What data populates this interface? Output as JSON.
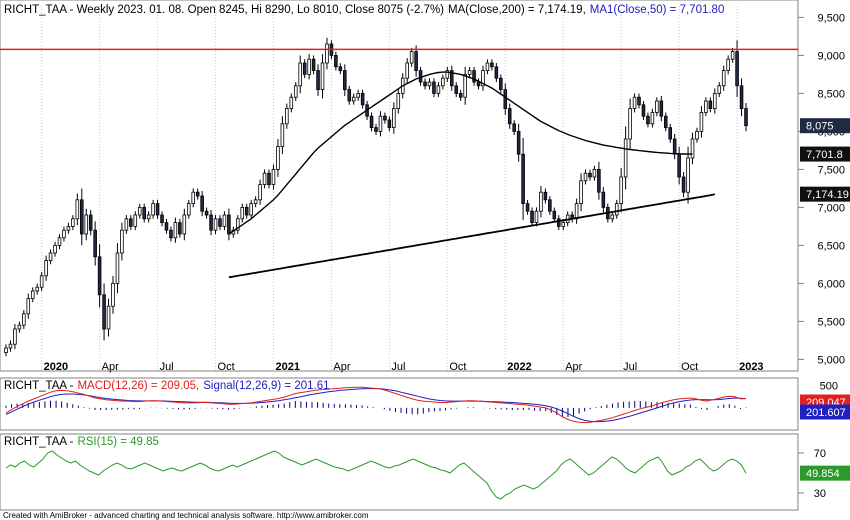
{
  "footer": "Created with AmiBroker - advanced charting and technical analysis software. http://www.amibroker.com",
  "colors": {
    "up": "#ffffff",
    "down": "#202a44",
    "candle_outline": "#000000",
    "resistance": "#e02020",
    "ma": "#000000",
    "macd": "#e02020",
    "signal": "#2020c0",
    "hist": "#000080",
    "rsi": "#2a9a2a",
    "tag_price": "#202a44",
    "tag_ma": "#101010"
  },
  "chart_data": [
    {
      "type": "candlestick",
      "header": {
        "prefix": "RICHT_TAA - Weekly 2023. 01. 08. Open 8245, Hi 8290, Lo 8010, Close 8075 (-2.7%)",
        "ma200": "MA(Close,200) = 7,174.19,",
        "ma50": "MA1(Close,50) = 7,701.80"
      },
      "ylim": [
        4900,
        9650
      ],
      "y_ticks": [
        5000,
        5500,
        6000,
        6500,
        7000,
        7500,
        8000,
        8500,
        9000,
        9500
      ],
      "y_tick_labels": [
        "5,000",
        "5,500",
        "6,000",
        "6,500",
        "7,000",
        "7,500",
        "8,000",
        "8,500",
        "9,000",
        "9,500"
      ],
      "x_labels": [
        {
          "t": 8,
          "label": "2020",
          "year": true
        },
        {
          "t": 21,
          "label": "Apr",
          "year": false
        },
        {
          "t": 34,
          "label": "Jul",
          "year": false
        },
        {
          "t": 47,
          "label": "Oct",
          "year": false
        },
        {
          "t": 60,
          "label": "2021",
          "year": true
        },
        {
          "t": 73,
          "label": "Apr",
          "year": false
        },
        {
          "t": 86,
          "label": "Jul",
          "year": false
        },
        {
          "t": 99,
          "label": "Oct",
          "year": false
        },
        {
          "t": 112,
          "label": "2022",
          "year": true
        },
        {
          "t": 125,
          "label": "Apr",
          "year": false
        },
        {
          "t": 138,
          "label": "Jul",
          "year": false
        },
        {
          "t": 151,
          "label": "Oct",
          "year": false
        },
        {
          "t": 164,
          "label": "2023",
          "year": true
        }
      ],
      "resistance": 9080,
      "tags": [
        {
          "label": "8,075",
          "value": 8075,
          "kind": "price"
        },
        {
          "label": "7,701.8",
          "value": 7701.8,
          "kind": "ma"
        },
        {
          "label": "7,174.19",
          "value": 7174.19,
          "kind": "ma"
        }
      ],
      "close": [
        5150,
        5200,
        5400,
        5450,
        5600,
        5800,
        5900,
        5950,
        6100,
        6300,
        6400,
        6500,
        6600,
        6700,
        6750,
        6850,
        7100,
        6650,
        6900,
        6700,
        6350,
        5850,
        5400,
        5700,
        6000,
        6400,
        6700,
        6850,
        6750,
        6900,
        7000,
        6850,
        6900,
        7050,
        6900,
        6800,
        6700,
        6600,
        6800,
        6650,
        6900,
        7050,
        7200,
        7150,
        6950,
        6900,
        6700,
        6850,
        6750,
        6900,
        6650,
        6700,
        6850,
        7000,
        6900,
        7050,
        7100,
        7300,
        7450,
        7300,
        7500,
        7800,
        8100,
        8300,
        8450,
        8600,
        8900,
        8750,
        8950,
        8800,
        8550,
        8900,
        9150,
        9000,
        8850,
        8800,
        8550,
        8400,
        8450,
        8500,
        8350,
        8200,
        8050,
        8000,
        8200,
        8150,
        8050,
        8300,
        8500,
        8700,
        8900,
        9050,
        8800,
        8650,
        8600,
        8650,
        8500,
        8600,
        8700,
        8800,
        8600,
        8500,
        8450,
        8750,
        8800,
        8650,
        8600,
        8800,
        8900,
        8850,
        8700,
        8550,
        8300,
        8100,
        8000,
        7700,
        7050,
        6950,
        6800,
        6950,
        7200,
        7100,
        6950,
        6850,
        6750,
        6800,
        6900,
        6850,
        7050,
        7350,
        7450,
        7400,
        7500,
        7200,
        7000,
        6850,
        6900,
        7050,
        7400,
        7900,
        8300,
        8450,
        8350,
        8200,
        8100,
        8250,
        8400,
        8200,
        8050,
        7900,
        7700,
        7400,
        7200,
        7650,
        7900,
        8000,
        8250,
        8400,
        8300,
        8500,
        8600,
        8800,
        8950,
        9050,
        8600,
        8300,
        8075
      ],
      "ma50": [
        null,
        null,
        null,
        null,
        null,
        null,
        null,
        null,
        null,
        null,
        null,
        null,
        null,
        null,
        null,
        null,
        null,
        null,
        null,
        null,
        null,
        null,
        null,
        null,
        null,
        null,
        null,
        null,
        null,
        null,
        null,
        null,
        null,
        null,
        null,
        null,
        null,
        null,
        null,
        null,
        null,
        null,
        null,
        null,
        null,
        null,
        null,
        null,
        null,
        null,
        6650,
        6690,
        6730,
        6770,
        6810,
        6850,
        6900,
        6950,
        7000,
        7050,
        7100,
        7160,
        7230,
        7300,
        7370,
        7440,
        7510,
        7580,
        7650,
        7720,
        7780,
        7830,
        7880,
        7930,
        7980,
        8030,
        8080,
        8120,
        8160,
        8200,
        8240,
        8280,
        8320,
        8360,
        8400,
        8440,
        8480,
        8520,
        8560,
        8600,
        8630,
        8660,
        8690,
        8710,
        8730,
        8750,
        8765,
        8775,
        8780,
        8780,
        8770,
        8760,
        8750,
        8730,
        8710,
        8690,
        8660,
        8630,
        8600,
        8570,
        8530,
        8490,
        8450,
        8410,
        8370,
        8330,
        8290,
        8250,
        8210,
        8170,
        8130,
        8100,
        8070,
        8040,
        8010,
        7985,
        7960,
        7940,
        7920,
        7900,
        7880,
        7865,
        7850,
        7835,
        7820,
        7810,
        7800,
        7790,
        7780,
        7770,
        7762,
        7755,
        7748,
        7741,
        7735,
        7729,
        7724,
        7719,
        7715,
        7711,
        7708,
        7705,
        7703,
        7702,
        7701.8
      ],
      "ma200": [
        null,
        null,
        null,
        null,
        null,
        null,
        null,
        null,
        null,
        null,
        null,
        null,
        null,
        null,
        null,
        null,
        null,
        null,
        null,
        null,
        null,
        null,
        null,
        null,
        null,
        null,
        null,
        null,
        null,
        null,
        null,
        null,
        null,
        null,
        null,
        null,
        null,
        null,
        null,
        null,
        null,
        null,
        null,
        null,
        null,
        null,
        null,
        null,
        null,
        null,
        6080,
        6090,
        6100,
        6110,
        6120,
        6130,
        6140,
        6150,
        6160,
        6170,
        6180,
        6190,
        6200,
        6210,
        6220,
        6230,
        6240,
        6250,
        6260,
        6270,
        6280,
        6290,
        6300,
        6310,
        6320,
        6330,
        6340,
        6350,
        6360,
        6370,
        6380,
        6390,
        6400,
        6410,
        6420,
        6430,
        6440,
        6450,
        6460,
        6470,
        6480,
        6490,
        6500,
        6510,
        6520,
        6530,
        6540,
        6550,
        6560,
        6570,
        6580,
        6590,
        6600,
        6610,
        6620,
        6630,
        6640,
        6650,
        6660,
        6670,
        6680,
        6690,
        6700,
        6710,
        6720,
        6730,
        6740,
        6750,
        6760,
        6770,
        6780,
        6790,
        6800,
        6810,
        6820,
        6830,
        6840,
        6850,
        6860,
        6870,
        6880,
        6890,
        6900,
        6910,
        6920,
        6930,
        6940,
        6950,
        6960,
        6970,
        6980,
        6990,
        7000,
        7010,
        7020,
        7030,
        7040,
        7050,
        7060,
        7070,
        7080,
        7090,
        7100,
        7110,
        7120,
        7130,
        7140,
        7150,
        7160,
        7174.19
      ]
    },
    {
      "type": "line",
      "header": {
        "prefix": "RICHT_TAA -",
        "macd": "MACD(12,26) = 209.05,",
        "signal": "Signal(12,26,9) = 201.61"
      },
      "ylim": [
        -450,
        600
      ],
      "y_ticks": [
        500
      ],
      "y_tick_labels": [
        "500"
      ],
      "tags": [
        {
          "label": "209.047",
          "value": 209.047,
          "kind": "macd"
        },
        {
          "label": "201.607",
          "value": 201.607,
          "kind": "signal"
        }
      ],
      "macd": [
        -120,
        -40,
        30,
        90,
        150,
        200,
        250,
        300,
        350,
        380,
        390,
        380,
        360,
        330,
        300,
        260,
        220,
        200,
        180,
        170,
        160,
        150,
        150,
        140,
        140,
        150,
        160,
        160,
        150,
        140,
        130,
        120,
        110,
        110,
        110,
        120,
        120,
        110,
        100,
        90,
        80,
        80,
        90,
        100,
        110,
        130,
        150,
        170,
        190,
        210,
        240,
        280,
        320,
        340,
        360,
        380,
        400,
        410,
        420,
        430,
        440,
        450,
        455,
        460,
        460,
        450,
        440,
        430,
        400,
        360,
        320,
        280,
        240,
        200,
        170,
        150,
        140,
        130,
        120,
        120,
        130,
        140,
        150,
        160,
        160,
        150,
        140,
        130,
        120,
        110,
        100,
        90,
        80,
        70,
        60,
        40,
        20,
        0,
        -50,
        -120,
        -200,
        -260,
        -300,
        -320,
        -330,
        -320,
        -300,
        -280,
        -250,
        -220,
        -180,
        -140,
        -100,
        -60,
        -20,
        10,
        40,
        80,
        120,
        150,
        180,
        200,
        210,
        220,
        200,
        170,
        150,
        180,
        210,
        240,
        260,
        250,
        200,
        209.05
      ],
      "signal": [
        -150,
        -90,
        -30,
        30,
        80,
        130,
        170,
        210,
        250,
        280,
        300,
        310,
        310,
        300,
        290,
        270,
        250,
        230,
        210,
        195,
        185,
        175,
        165,
        160,
        155,
        155,
        155,
        155,
        155,
        150,
        145,
        140,
        135,
        130,
        125,
        125,
        125,
        120,
        115,
        110,
        105,
        100,
        100,
        100,
        105,
        110,
        120,
        130,
        145,
        160,
        180,
        200,
        225,
        250,
        275,
        300,
        320,
        340,
        360,
        375,
        390,
        400,
        410,
        420,
        425,
        430,
        430,
        430,
        420,
        400,
        380,
        350,
        320,
        290,
        260,
        230,
        200,
        180,
        165,
        155,
        150,
        150,
        150,
        150,
        150,
        150,
        145,
        140,
        135,
        130,
        125,
        120,
        110,
        100,
        90,
        80,
        65,
        45,
        20,
        -20,
        -70,
        -130,
        -190,
        -240,
        -280,
        -300,
        -310,
        -305,
        -295,
        -280,
        -255,
        -225,
        -190,
        -155,
        -115,
        -80,
        -40,
        0,
        40,
        80,
        110,
        140,
        160,
        175,
        185,
        185,
        180,
        180,
        185,
        195,
        210,
        220,
        215,
        201.61
      ],
      "hist_scale": 1.6
    },
    {
      "type": "line",
      "header": {
        "prefix": "RICHT_TAA -",
        "rsi": "RSI(15) = 49.85"
      },
      "ylim": [
        15,
        85
      ],
      "y_ticks": [
        70,
        30
      ],
      "y_tick_labels": [
        "70",
        "30"
      ],
      "tags": [
        {
          "label": "49.854",
          "value": 49.854,
          "kind": "rsi"
        }
      ],
      "rsi": [
        55,
        58,
        56,
        60,
        62,
        58,
        56,
        60,
        64,
        70,
        72,
        68,
        65,
        62,
        60,
        62,
        58,
        55,
        52,
        50,
        48,
        52,
        55,
        58,
        60,
        58,
        55,
        54,
        56,
        58,
        60,
        58,
        56,
        54,
        52,
        54,
        55,
        53,
        52,
        54,
        56,
        58,
        60,
        58,
        55,
        53,
        52,
        54,
        56,
        58,
        56,
        58,
        60,
        62,
        64,
        66,
        68,
        70,
        72,
        70,
        66,
        64,
        62,
        60,
        58,
        60,
        62,
        64,
        62,
        60,
        58,
        56,
        55,
        54,
        52,
        54,
        56,
        58,
        60,
        62,
        60,
        58,
        56,
        55,
        57,
        58,
        60,
        62,
        64,
        62,
        60,
        58,
        56,
        55,
        53,
        52,
        50,
        54,
        58,
        60,
        56,
        52,
        48,
        44,
        40,
        32,
        26,
        24,
        28,
        30,
        34,
        36,
        38,
        36,
        34,
        36,
        40,
        44,
        48,
        52,
        58,
        62,
        64,
        60,
        56,
        52,
        48,
        50,
        54,
        58,
        62,
        66,
        64,
        60,
        55,
        52,
        50,
        54,
        58,
        62,
        64,
        66,
        60,
        52,
        48,
        50,
        52,
        56,
        58,
        62,
        64,
        60,
        55,
        52,
        54,
        58,
        62,
        64,
        62,
        58,
        49.85
      ]
    }
  ]
}
